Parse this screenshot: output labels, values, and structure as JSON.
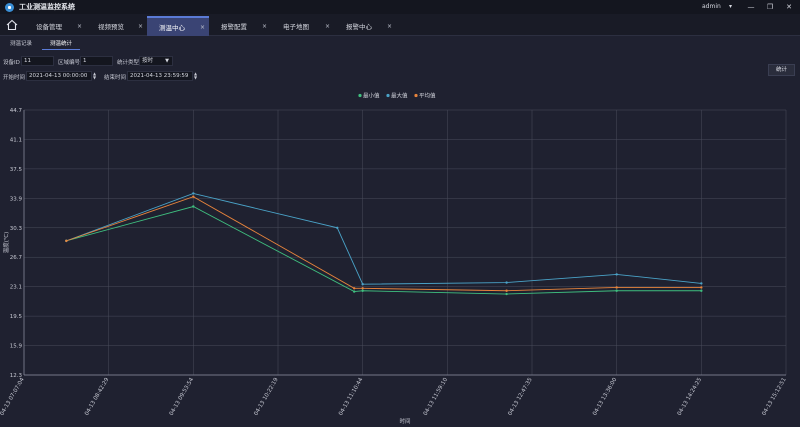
{
  "app": {
    "title": "工业测温监控系统",
    "user": "admin",
    "user_caret": "▾"
  },
  "window_controls": {
    "minimize": "—",
    "maximize": "❐",
    "close": "✕"
  },
  "tabs": [
    {
      "label": "设备管理",
      "close": "×",
      "active": false
    },
    {
      "label": "视频预览",
      "close": "×",
      "active": false
    },
    {
      "label": "测温中心",
      "close": "×",
      "active": true
    },
    {
      "label": "报警配置",
      "close": "×",
      "active": false
    },
    {
      "label": "电子地图",
      "close": "×",
      "active": false
    },
    {
      "label": "报警中心",
      "close": "×",
      "active": false
    }
  ],
  "subtabs": [
    {
      "label": "测温记录",
      "active": false
    },
    {
      "label": "测温统计",
      "active": true
    }
  ],
  "filters": {
    "device_id_label": "设备ID",
    "device_id_value": "11",
    "region_label": "区域编号",
    "region_value": "1",
    "stat_type_label": "统计类型",
    "stat_type_value": "按时",
    "start_label": "开始时间",
    "start_value": "2021-04-13 00:00:00",
    "end_label": "结束时间",
    "end_value": "2021-04-13 23:59:59",
    "submit_label": "统计"
  },
  "colors": {
    "min": "#3fbf7f",
    "max": "#4aa3c8",
    "avg": "#e8843c",
    "accent": "#5b7bd6",
    "grid": "#4a4d5c"
  },
  "chart_data": {
    "type": "line",
    "title": "",
    "xlabel": "时间",
    "ylabel": "温度(℃)",
    "ylim": [
      12.3,
      44.7
    ],
    "yticks": [
      "12.3",
      "15.9",
      "19.5",
      "23.1",
      "26.7",
      "30.3",
      "33.9",
      "37.5",
      "41.1",
      "44.7"
    ],
    "xticks": [
      "04-13 07:07:04",
      "04-13 08:42:29",
      "04-13 09:53:54",
      "04-13 10:22:19",
      "04-13 11:10:44",
      "04-13 11:59:10",
      "04-13 12:47:35",
      "04-13 13:36:00",
      "04-13 14:24:25",
      "04-13 15:12:51"
    ],
    "legend_position": "top-center",
    "grid": true,
    "series": [
      {
        "name": "最小值",
        "color_key": "min",
        "points": [
          [
            0.5,
            28.7
          ],
          [
            2.0,
            32.9
          ],
          [
            3.9,
            22.5
          ],
          [
            4.0,
            22.6
          ],
          [
            5.7,
            22.2
          ],
          [
            7.0,
            22.6
          ],
          [
            8.0,
            22.6
          ]
        ]
      },
      {
        "name": "最大值",
        "color_key": "max",
        "points": [
          [
            0.5,
            28.7
          ],
          [
            2.0,
            34.5
          ],
          [
            3.7,
            30.3
          ],
          [
            4.0,
            23.4
          ],
          [
            5.7,
            23.6
          ],
          [
            7.0,
            24.6
          ],
          [
            8.0,
            23.5
          ]
        ]
      },
      {
        "name": "平均值",
        "color_key": "avg",
        "points": [
          [
            0.5,
            28.7
          ],
          [
            2.0,
            34.1
          ],
          [
            3.9,
            22.9
          ],
          [
            4.0,
            22.9
          ],
          [
            5.7,
            22.6
          ],
          [
            7.0,
            23.0
          ],
          [
            8.0,
            23.0
          ]
        ]
      }
    ]
  }
}
